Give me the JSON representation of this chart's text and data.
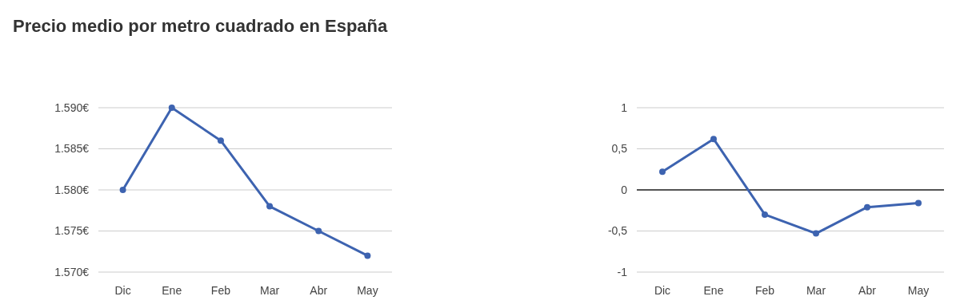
{
  "chart_data": [
    {
      "type": "line",
      "title": "Precio medio por metro cuadrado en España",
      "categories": [
        "Dic",
        "Ene",
        "Feb",
        "Mar",
        "Abr",
        "May"
      ],
      "series": [
        {
          "color": "#3d63b0",
          "values": [
            1580,
            1590,
            1586,
            1578,
            1575,
            1572
          ]
        }
      ],
      "ylim": [
        1570,
        1590
      ],
      "yticks": [
        {
          "value": 1570,
          "label": "1.570€"
        },
        {
          "value": 1575,
          "label": "1.575€"
        },
        {
          "value": 1580,
          "label": "1.580€"
        },
        {
          "value": 1585,
          "label": "1.585€"
        },
        {
          "value": 1590,
          "label": "1.590€"
        }
      ],
      "grid": "y",
      "marker": "circle"
    },
    {
      "type": "line",
      "categories": [
        "Dic",
        "Ene",
        "Feb",
        "Mar",
        "Abr",
        "May"
      ],
      "series": [
        {
          "color": "#3d63b0",
          "values": [
            0.22,
            0.62,
            -0.3,
            -0.53,
            -0.21,
            -0.16
          ]
        }
      ],
      "ylim": [
        -1,
        1
      ],
      "yticks": [
        {
          "value": -1,
          "label": "-1"
        },
        {
          "value": -0.5,
          "label": "-0,5"
        },
        {
          "value": 0,
          "label": "0"
        },
        {
          "value": 0.5,
          "label": "0,5"
        },
        {
          "value": 1,
          "label": "1"
        }
      ],
      "ref_lines": [
        {
          "axis": "y",
          "value": 0,
          "color": "#222222"
        }
      ],
      "grid": "y",
      "marker": "circle"
    }
  ]
}
